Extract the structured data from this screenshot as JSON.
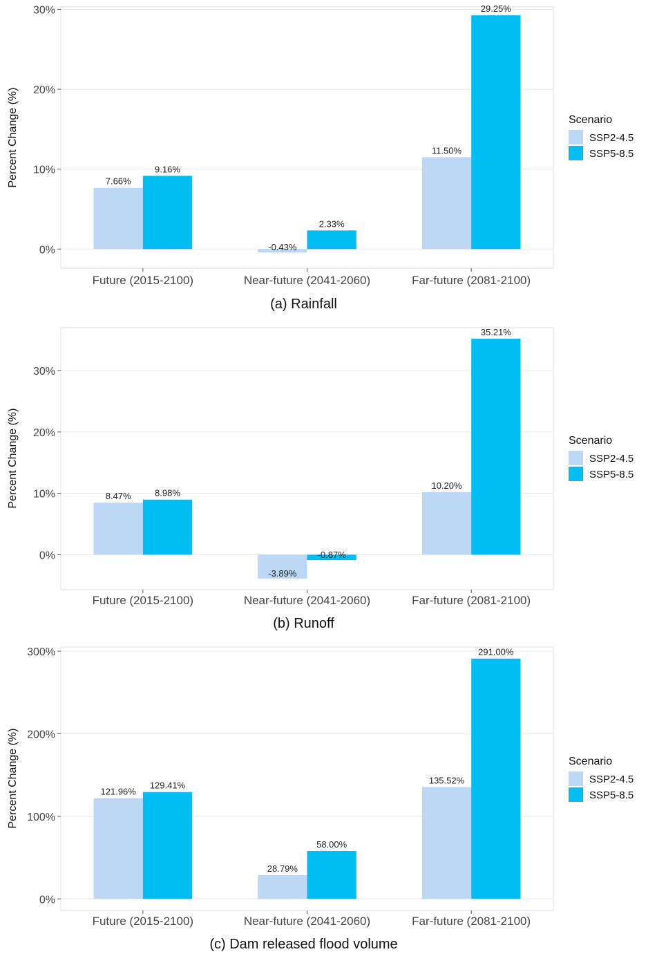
{
  "colors": {
    "ssp245": "#bcd8f4",
    "ssp585": "#00bef4",
    "grid": "#e6e6e6",
    "frame": "#dddddd"
  },
  "chart_data": [
    {
      "type": "bar",
      "title": "(a) Rainfall",
      "ylabel": "Percent Change (%)",
      "ylim": [
        -2.4,
        30.3
      ],
      "yticks": [
        0,
        10,
        20,
        30
      ],
      "ytick_labels": [
        "0%",
        "10%",
        "20%",
        "30%"
      ],
      "categories": [
        "Future (2015-2100)",
        "Near-future (2041-2060)",
        "Far-future (2081-2100)"
      ],
      "legend": {
        "title": "Scenario",
        "position": "right"
      },
      "series": [
        {
          "name": "SSP2-4.5",
          "values": [
            7.66,
            -0.43,
            11.5
          ],
          "labels": [
            "7.66%",
            "-0.43%",
            "11.50%"
          ]
        },
        {
          "name": "SSP5-8.5",
          "values": [
            9.16,
            2.33,
            29.25
          ],
          "labels": [
            "9.16%",
            "2.33%",
            "29.25%"
          ]
        }
      ]
    },
    {
      "type": "bar",
      "title": "(b) Runoff",
      "ylabel": "Percent Change (%)",
      "ylim": [
        -5.7,
        37.0
      ],
      "yticks": [
        0,
        10,
        20,
        30
      ],
      "ytick_labels": [
        "0%",
        "10%",
        "20%",
        "30%"
      ],
      "categories": [
        "Future (2015-2100)",
        "Near-future (2041-2060)",
        "Far-future (2081-2100)"
      ],
      "legend": {
        "title": "Scenario",
        "position": "right"
      },
      "series": [
        {
          "name": "SSP2-4.5",
          "values": [
            8.47,
            -3.89,
            10.2
          ],
          "labels": [
            "8.47%",
            "-3.89%",
            "10.20%"
          ]
        },
        {
          "name": "SSP5-8.5",
          "values": [
            8.98,
            -0.87,
            35.21
          ],
          "labels": [
            "8.98%",
            "-0.87%",
            "35.21%"
          ]
        }
      ]
    },
    {
      "type": "bar",
      "title": "(c) Dam released flood volume",
      "ylabel": "Percent Change (%)",
      "ylim": [
        -14,
        305
      ],
      "yticks": [
        0,
        100,
        200,
        300
      ],
      "ytick_labels": [
        "0%",
        "100%",
        "200%",
        "300%"
      ],
      "categories": [
        "Future (2015-2100)",
        "Near-future (2041-2060)",
        "Far-future (2081-2100)"
      ],
      "legend": {
        "title": "Scenario",
        "position": "right"
      },
      "series": [
        {
          "name": "SSP2-4.5",
          "values": [
            121.96,
            28.79,
            135.52
          ],
          "labels": [
            "121.96%",
            "28.79%",
            "135.52%"
          ]
        },
        {
          "name": "SSP5-8.5",
          "values": [
            129.41,
            58.0,
            291.0
          ],
          "labels": [
            "129.41%",
            "58.00%",
            "291.00%"
          ]
        }
      ]
    }
  ]
}
